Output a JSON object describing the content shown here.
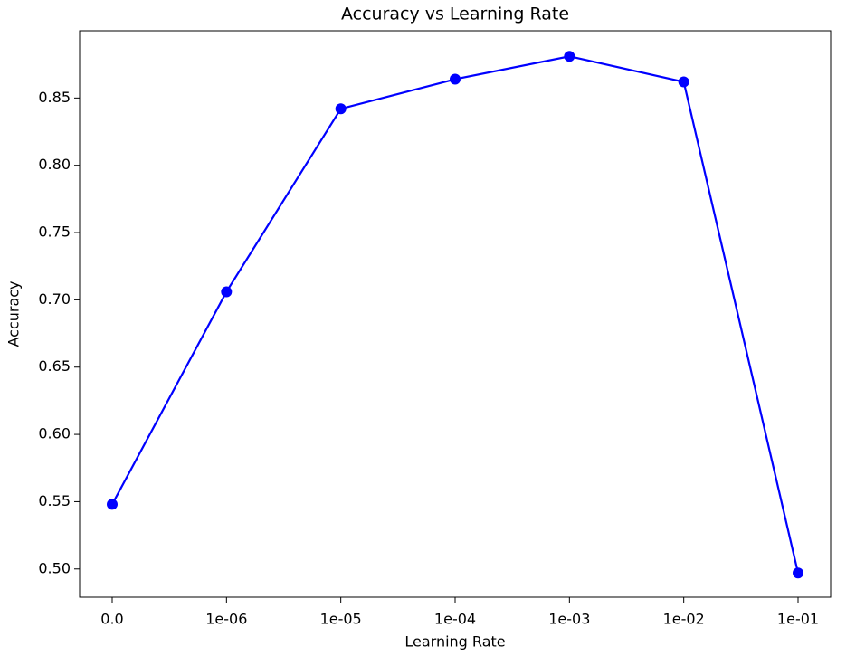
{
  "chart_data": {
    "type": "line",
    "title": "Accuracy vs Learning Rate",
    "x_label": "Learning Rate",
    "y_label": "Accuracy",
    "categories": [
      "0.0",
      "1e-06",
      "1e-05",
      "1e-04",
      "1e-03",
      "1e-02",
      "1e-01"
    ],
    "values": [
      0.548,
      0.706,
      0.842,
      0.864,
      0.881,
      0.862,
      0.497
    ],
    "color": "#0000ff",
    "marker": true,
    "ylim": [
      0.479,
      0.9
    ],
    "yticks": [
      {
        "value": 0.5,
        "label": "0.50"
      },
      0.55,
      {
        "value": 0.6,
        "label": "0.60"
      },
      0.65,
      {
        "value": 0.7,
        "label": "0.70"
      },
      0.75,
      {
        "value": 0.8,
        "label": "0.80"
      },
      0.85
    ],
    "grid": false
  }
}
